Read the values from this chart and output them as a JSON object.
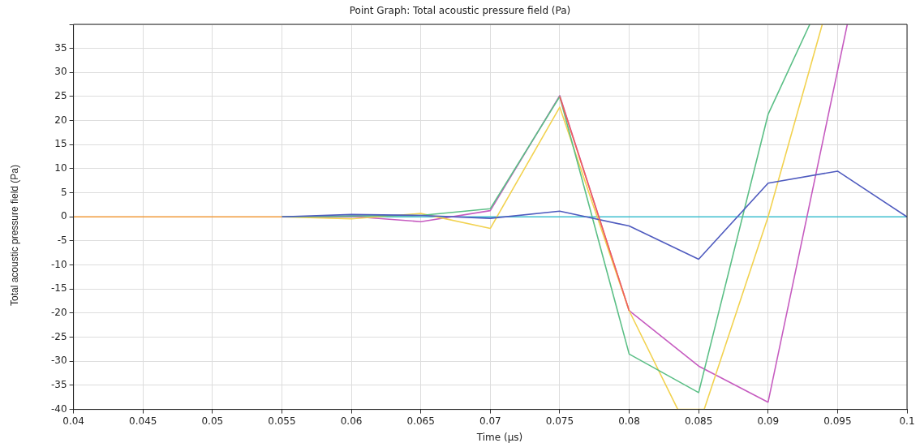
{
  "chart_data": {
    "type": "line",
    "title": "Point Graph: Total acoustic pressure field (Pa)",
    "xlabel": "Time (µs)",
    "ylabel": "Total acoustic pressure field (Pa)",
    "x": [
      0.04,
      0.045,
      0.05,
      0.055,
      0.06,
      0.065,
      0.07,
      0.075,
      0.08,
      0.085,
      0.09,
      0.095,
      0.1
    ],
    "series": [
      {
        "color": "#f09a3a",
        "values": [
          0,
          0,
          0,
          0,
          null,
          null,
          null,
          null,
          null,
          null,
          null,
          null,
          null
        ]
      },
      {
        "color": "#f0605a",
        "values": [
          null,
          null,
          null,
          null,
          null,
          null,
          null,
          25,
          -19.5,
          null,
          null,
          null,
          null
        ]
      },
      {
        "color": "#4f5bbf",
        "values": [
          null,
          null,
          null,
          0,
          0.5,
          0.3,
          -0.3,
          1.2,
          -1.9,
          -8.8,
          7,
          9.5,
          0
        ]
      },
      {
        "color": "#5bbf86",
        "x": [
          0.055,
          0.06,
          0.065,
          0.07,
          0.075,
          0.08,
          0.085,
          0.09,
          0.093
        ],
        "values": [
          0,
          0.2,
          0.3,
          1.7,
          25,
          -28.5,
          -36.5,
          21.3,
          40
        ]
      },
      {
        "color": "#f2d250",
        "x": [
          0.055,
          0.06,
          0.065,
          0.07,
          0.075,
          0.08,
          0.0835,
          0.0854,
          0.09,
          0.0939
        ],
        "values": [
          0,
          -0.4,
          0.7,
          -2.4,
          22.8,
          -19.5,
          -40,
          -40,
          0,
          40
        ]
      },
      {
        "color": "#c65cc0",
        "x": [
          0.055,
          0.06,
          0.065,
          0.07,
          0.075,
          0.08,
          0.085,
          0.09,
          0.0957
        ],
        "values": [
          0,
          0.1,
          -1,
          1.3,
          25.2,
          -19.5,
          -31,
          -38.5,
          40
        ]
      },
      {
        "color": "#3fbfcf",
        "values": [
          null,
          null,
          null,
          0,
          0,
          0,
          0,
          0,
          0,
          0,
          0,
          0,
          0
        ]
      }
    ],
    "xlim": [
      0.04,
      0.1
    ],
    "xticks": [
      0.04,
      0.045,
      0.05,
      0.055,
      0.06,
      0.065,
      0.07,
      0.075,
      0.08,
      0.085,
      0.09,
      0.095,
      0.1
    ],
    "ylim": [
      -40,
      40
    ],
    "yticks": [
      -40,
      -35,
      -30,
      -25,
      -20,
      -15,
      -10,
      -5,
      0,
      5,
      10,
      15,
      20,
      25,
      30,
      35,
      {
        "value": 40,
        "label": null
      }
    ],
    "grid": true,
    "legend": false,
    "marker": "none",
    "line_style": "solid"
  }
}
